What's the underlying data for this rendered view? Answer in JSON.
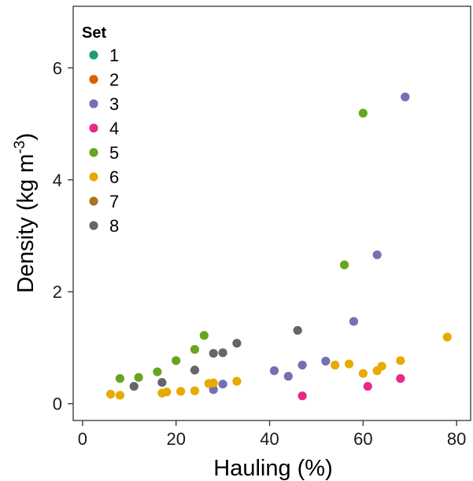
{
  "chart_data": {
    "type": "scatter",
    "xlabel": "Hauling (%)",
    "ylabel": "Density (kg m",
    "ylabel_sup": "-3",
    "ylabel_end": ")",
    "xlim": [
      -2,
      83
    ],
    "ylim": [
      -0.3,
      7.1
    ],
    "x_ticks": [
      0,
      20,
      40,
      60,
      80
    ],
    "y_ticks": [
      0,
      2,
      4,
      6
    ],
    "grid": false,
    "legend": {
      "title": "Set",
      "placement": "top-left",
      "entries": [
        {
          "label": "1",
          "color": "#1b9e77"
        },
        {
          "label": "2",
          "color": "#d95f02"
        },
        {
          "label": "3",
          "color": "#7570b3"
        },
        {
          "label": "4",
          "color": "#e7298a"
        },
        {
          "label": "5",
          "color": "#66a61e"
        },
        {
          "label": "6",
          "color": "#e6ab02"
        },
        {
          "label": "7",
          "color": "#a6761d"
        },
        {
          "label": "8",
          "color": "#666666"
        }
      ]
    },
    "series": [
      {
        "set": "3",
        "color": "#7570b3",
        "points": [
          [
            69,
            5.48
          ],
          [
            63,
            2.66
          ],
          [
            58,
            1.47
          ],
          [
            52,
            0.76
          ],
          [
            47,
            0.69
          ],
          [
            41,
            0.59
          ],
          [
            44,
            0.49
          ],
          [
            30,
            0.35
          ],
          [
            28,
            0.25
          ]
        ]
      },
      {
        "set": "4",
        "color": "#e7298a",
        "points": [
          [
            47,
            0.14
          ],
          [
            61,
            0.31
          ],
          [
            68,
            0.45
          ]
        ]
      },
      {
        "set": "5",
        "color": "#66a61e",
        "points": [
          [
            60,
            5.19
          ],
          [
            56,
            2.48
          ],
          [
            26,
            1.22
          ],
          [
            24,
            0.97
          ],
          [
            20,
            0.77
          ],
          [
            16,
            0.57
          ],
          [
            12,
            0.47
          ],
          [
            8,
            0.45
          ]
        ]
      },
      {
        "set": "6",
        "color": "#e6ab02",
        "points": [
          [
            78,
            1.19
          ],
          [
            68,
            0.77
          ],
          [
            64,
            0.67
          ],
          [
            63,
            0.59
          ],
          [
            60,
            0.54
          ],
          [
            57,
            0.71
          ],
          [
            54,
            0.69
          ],
          [
            33,
            0.4
          ],
          [
            28,
            0.37
          ],
          [
            27,
            0.36
          ],
          [
            24,
            0.23
          ],
          [
            21,
            0.22
          ],
          [
            18,
            0.21
          ],
          [
            17,
            0.19
          ],
          [
            8,
            0.15
          ],
          [
            6,
            0.17
          ]
        ]
      },
      {
        "set": "8",
        "color": "#666666",
        "points": [
          [
            46,
            1.31
          ],
          [
            33,
            1.08
          ],
          [
            30,
            0.91
          ],
          [
            28,
            0.9
          ],
          [
            24,
            0.6
          ],
          [
            17,
            0.38
          ],
          [
            11,
            0.31
          ]
        ]
      }
    ]
  }
}
